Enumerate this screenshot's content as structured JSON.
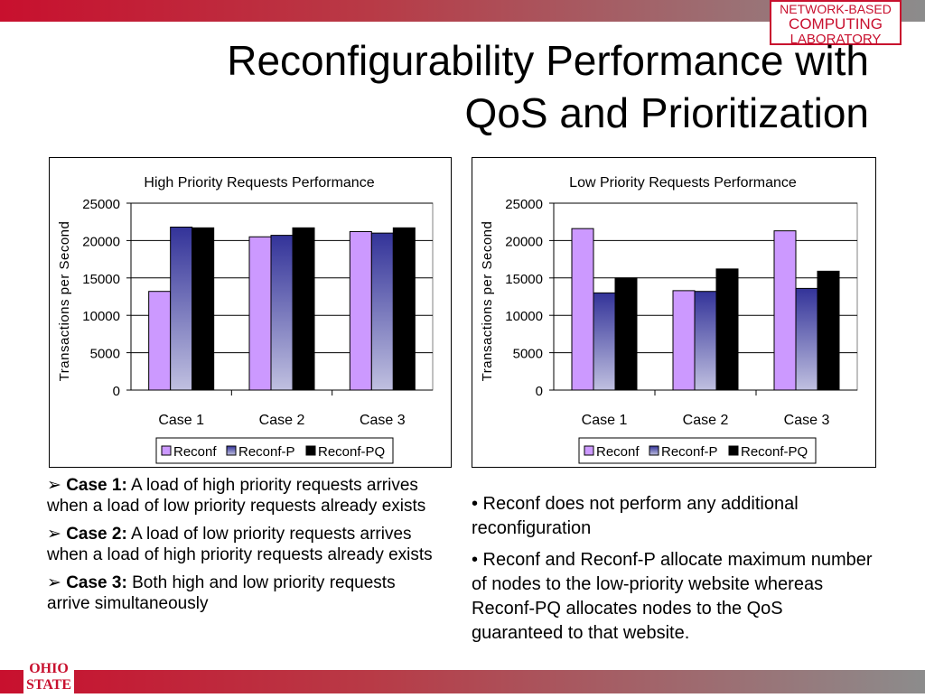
{
  "header": {
    "logo_lines": [
      "NETWORK-BASED",
      "COMPUTING",
      "LABORATORY"
    ],
    "title_line1": "Reconfigurability Performance with",
    "title_line2": "QoS and Prioritization"
  },
  "colors": {
    "reconf": "#cc99ff",
    "reconf_p_top": "#333399",
    "reconf_p_bottom": "#c0c0e0",
    "reconf_pq": "#000000",
    "brand_red": "#c8102e"
  },
  "chart_data": [
    {
      "type": "bar",
      "title": "High Priority Requests Performance",
      "ylabel": "Transactions per Second",
      "xlabel": "",
      "categories": [
        "Case 1",
        "Case 2",
        "Case 3"
      ],
      "ylim": [
        0,
        25000
      ],
      "yticks": [
        "25000",
        "20000",
        "15000",
        "10000",
        "5000",
        "0"
      ],
      "grid": true,
      "legend_position": "bottom",
      "series": [
        {
          "name": "Reconf",
          "values": [
            13200,
            20500,
            21200
          ]
        },
        {
          "name": "Reconf-P",
          "values": [
            21800,
            20700,
            21000
          ]
        },
        {
          "name": "Reconf-PQ",
          "values": [
            21700,
            21700,
            21700
          ]
        }
      ]
    },
    {
      "type": "bar",
      "title": "Low Priority Requests Performance",
      "ylabel": "Transactions per Second",
      "xlabel": "",
      "categories": [
        "Case 1",
        "Case 2",
        "Case 3"
      ],
      "ylim": [
        0,
        25000
      ],
      "yticks": [
        "25000",
        "20000",
        "15000",
        "10000",
        "5000",
        "0"
      ],
      "grid": true,
      "legend_position": "bottom",
      "series": [
        {
          "name": "Reconf",
          "values": [
            21600,
            13300,
            21300
          ]
        },
        {
          "name": "Reconf-P",
          "values": [
            13000,
            13200,
            13600
          ]
        },
        {
          "name": "Reconf-PQ",
          "values": [
            15000,
            16200,
            15900
          ]
        }
      ]
    }
  ],
  "left_notes": [
    {
      "marker": "➢",
      "label": "Case 1:",
      "text": " A load of high priority requests arrives when a load of low priority requests already exists"
    },
    {
      "marker": "➢",
      "label": "Case 2:",
      "text": " A load of low priority requests arrives when a load of high priority requests already exists"
    },
    {
      "marker": "➢",
      "label": "Case 3:",
      "text": " Both high and low priority requests arrive simultaneously"
    }
  ],
  "right_notes": [
    "• Reconf does not perform any additional reconfiguration",
    "• Reconf and Reconf-P allocate maximum number of nodes to the low-priority website whereas Reconf-PQ allocates nodes to the QoS guaranteed to that website."
  ],
  "footer": {
    "osu_logo_lines": [
      "OHIO",
      "STATE"
    ]
  }
}
